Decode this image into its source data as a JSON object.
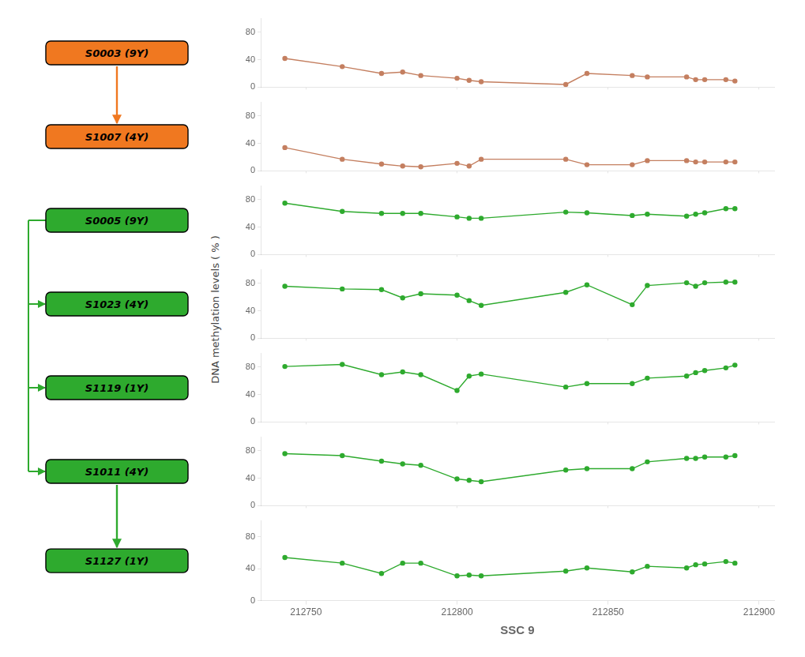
{
  "chart_data": [
    {
      "type": "line",
      "annotations": [
        {
          "text": "S0003 (9Y)",
          "color": "#F07820"
        }
      ],
      "x": [
        212743,
        212762,
        212775,
        212782,
        212788,
        212800,
        212804,
        212808,
        212836,
        212843,
        212858,
        212863,
        212876,
        212879,
        212882,
        212889,
        212892
      ],
      "series": [
        {
          "color": "#C47F60",
          "marker": "circle",
          "values": [
            42,
            30,
            20,
            22,
            17,
            13,
            10,
            8,
            4,
            20,
            17,
            15,
            15,
            11,
            11,
            11,
            9
          ]
        }
      ],
      "xlim": [
        212735,
        212905
      ],
      "ylim": [
        0,
        100
      ],
      "xticks": [
        212750,
        212800,
        212850,
        212900
      ],
      "yticks": [
        0,
        40,
        80
      ],
      "grid": false,
      "tick_labels": "y"
    },
    {
      "type": "line",
      "annotations": [
        {
          "text": "S1007 (4Y)",
          "color": "#F07820"
        }
      ],
      "x": [
        212743,
        212762,
        212775,
        212782,
        212788,
        212800,
        212804,
        212808,
        212836,
        212843,
        212858,
        212863,
        212876,
        212879,
        212882,
        212889,
        212892
      ],
      "series": [
        {
          "color": "#C47F60",
          "marker": "circle",
          "values": [
            34,
            17,
            10,
            7,
            6,
            11,
            7,
            17,
            17,
            9,
            9,
            15,
            15,
            13,
            13,
            13,
            13
          ]
        }
      ],
      "xlim": [
        212735,
        212905
      ],
      "ylim": [
        0,
        100
      ],
      "xticks": [
        212750,
        212800,
        212850,
        212900
      ],
      "yticks": [
        0,
        40,
        80
      ],
      "grid": false,
      "tick_labels": "y"
    },
    {
      "type": "line",
      "annotations": [
        {
          "text": "S0005 (9Y)",
          "color": "#2EAA2E"
        }
      ],
      "x": [
        212743,
        212762,
        212775,
        212782,
        212788,
        212800,
        212804,
        212808,
        212836,
        212843,
        212858,
        212863,
        212876,
        212879,
        212882,
        212889,
        212892
      ],
      "series": [
        {
          "color": "#2EAA2E",
          "marker": "circle",
          "values": [
            75,
            63,
            60,
            60,
            60,
            55,
            53,
            53,
            62,
            61,
            57,
            59,
            56,
            59,
            61,
            67,
            67
          ]
        }
      ],
      "xlim": [
        212735,
        212905
      ],
      "ylim": [
        0,
        100
      ],
      "xticks": [
        212750,
        212800,
        212850,
        212900
      ],
      "yticks": [
        0,
        40,
        80
      ],
      "grid": false,
      "tick_labels": "y"
    },
    {
      "type": "line",
      "annotations": [
        {
          "text": "S1023 (4Y)",
          "color": "#2EAA2E"
        }
      ],
      "ylabel": "DNA methylation levels ( % )",
      "x": [
        212743,
        212762,
        212775,
        212782,
        212788,
        212800,
        212804,
        212808,
        212836,
        212843,
        212858,
        212863,
        212876,
        212879,
        212882,
        212889,
        212892
      ],
      "series": [
        {
          "color": "#2EAA2E",
          "marker": "circle",
          "values": [
            76,
            72,
            71,
            59,
            65,
            63,
            55,
            48,
            67,
            78,
            49,
            77,
            81,
            76,
            81,
            82,
            82
          ]
        }
      ],
      "xlim": [
        212735,
        212905
      ],
      "ylim": [
        0,
        100
      ],
      "xticks": [
        212750,
        212800,
        212850,
        212900
      ],
      "yticks": [
        0,
        40,
        80
      ],
      "grid": false,
      "tick_labels": "y"
    },
    {
      "type": "line",
      "annotations": [
        {
          "text": "S1119 (1Y)",
          "color": "#2EAA2E"
        }
      ],
      "x": [
        212743,
        212762,
        212775,
        212782,
        212788,
        212800,
        212804,
        212808,
        212836,
        212843,
        212858,
        212863,
        212876,
        212879,
        212882,
        212889,
        212892
      ],
      "series": [
        {
          "color": "#2EAA2E",
          "marker": "circle",
          "values": [
            81,
            84,
            69,
            73,
            69,
            46,
            67,
            70,
            51,
            56,
            56,
            64,
            67,
            72,
            75,
            79,
            83
          ]
        }
      ],
      "xlim": [
        212735,
        212905
      ],
      "ylim": [
        0,
        100
      ],
      "xticks": [
        212750,
        212800,
        212850,
        212900
      ],
      "yticks": [
        0,
        40,
        80
      ],
      "grid": false,
      "tick_labels": "y"
    },
    {
      "type": "line",
      "annotations": [
        {
          "text": "S1011 (4Y)",
          "color": "#2EAA2E"
        }
      ],
      "x": [
        212743,
        212762,
        212775,
        212782,
        212788,
        212800,
        212804,
        212808,
        212836,
        212843,
        212858,
        212863,
        212876,
        212879,
        212882,
        212889,
        212892
      ],
      "series": [
        {
          "color": "#2EAA2E",
          "marker": "circle",
          "values": [
            76,
            73,
            65,
            61,
            59,
            39,
            37,
            35,
            52,
            54,
            54,
            64,
            69,
            69,
            71,
            71,
            73
          ]
        }
      ],
      "xlim": [
        212735,
        212905
      ],
      "ylim": [
        0,
        100
      ],
      "xticks": [
        212750,
        212800,
        212850,
        212900
      ],
      "yticks": [
        0,
        40,
        80
      ],
      "grid": false,
      "tick_labels": "y"
    },
    {
      "type": "line",
      "annotations": [
        {
          "text": "S1127 (1Y)",
          "color": "#2EAA2E"
        }
      ],
      "xlabel": "SSC 9",
      "x": [
        212743,
        212762,
        212775,
        212782,
        212788,
        212800,
        212804,
        212808,
        212836,
        212843,
        212858,
        212863,
        212876,
        212879,
        212882,
        212889,
        212892
      ],
      "series": [
        {
          "color": "#2EAA2E",
          "marker": "circle",
          "values": [
            54,
            47,
            34,
            47,
            47,
            31,
            32,
            31,
            37,
            41,
            36,
            43,
            41,
            45,
            46,
            49,
            47
          ]
        }
      ],
      "xlim": [
        212735,
        212905
      ],
      "ylim": [
        0,
        100
      ],
      "xticks": [
        212750,
        212800,
        212850,
        212900
      ],
      "yticks": [
        0,
        40,
        80
      ],
      "grid": false
    }
  ]
}
